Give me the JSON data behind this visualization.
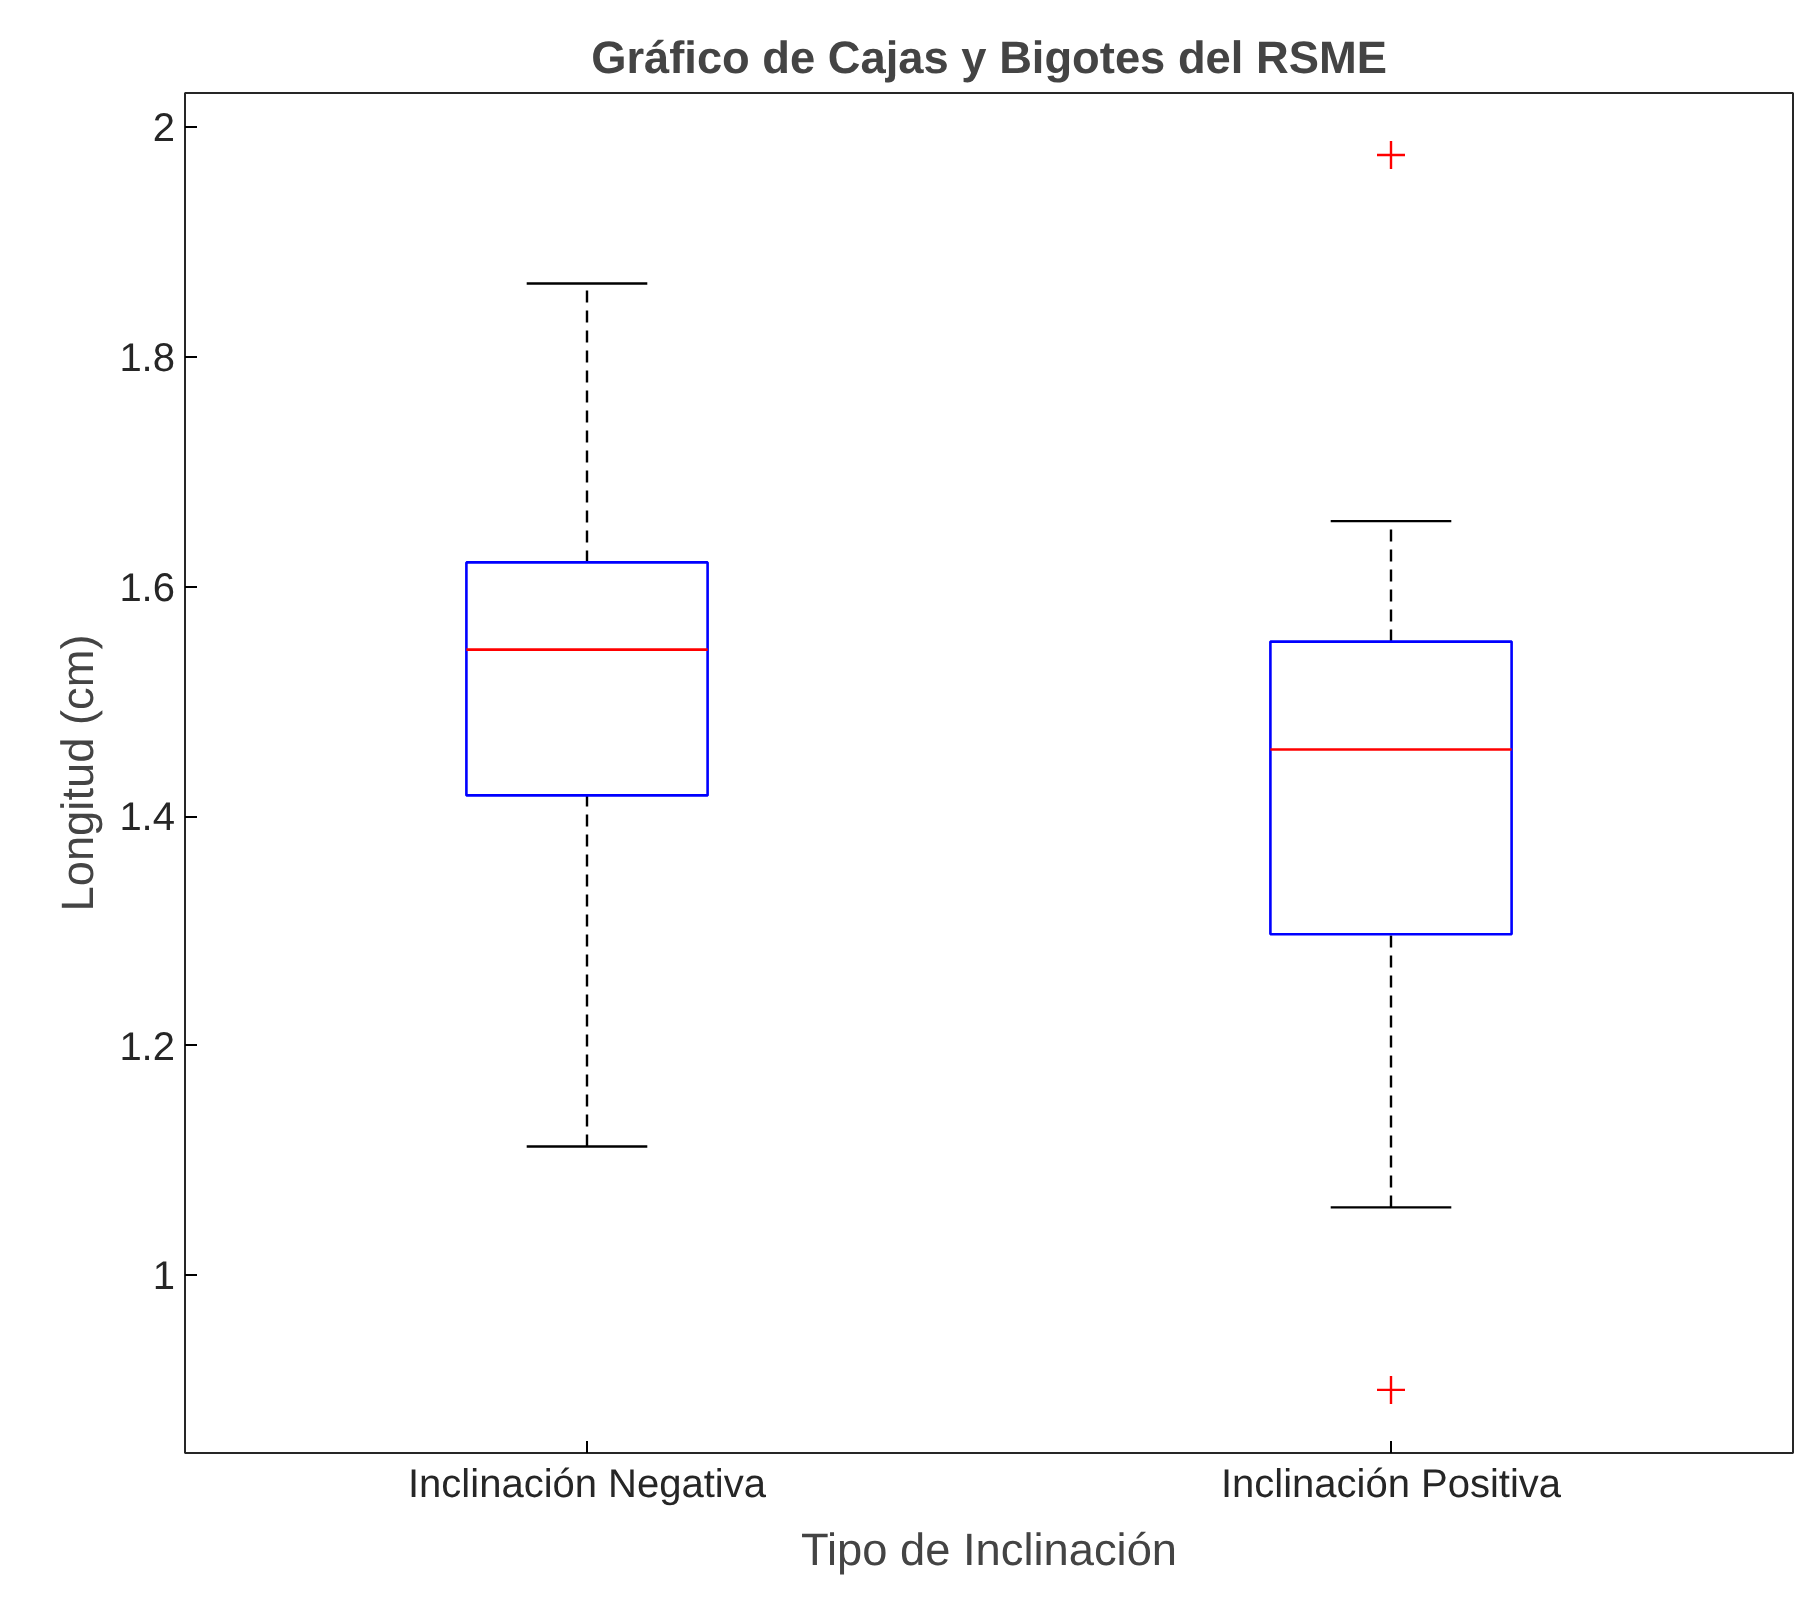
{
  "chart_data": {
    "type": "box",
    "title": "Gráfico de Cajas y Bigotes del RSME",
    "xlabel": "Tipo de Inclinación",
    "ylabel": "Longitud (cm)",
    "categories": [
      "Inclinación Negativa",
      "Inclinación Positiva"
    ],
    "series": [
      {
        "color": "#0000ff",
        "boxes": [
          {
            "low": 1.112,
            "q1": 1.418,
            "median": 1.545,
            "q3": 1.621,
            "high": 1.864
          },
          {
            "low": 1.059,
            "q1": 1.297,
            "median": 1.458,
            "q3": 1.552,
            "high": 1.657,
            "outliers": [
              1.976,
              0.9
            ]
          }
        ]
      }
    ],
    "ylim": [
      0.845,
      2.03
    ],
    "yticks": [
      1,
      1.2,
      1.4,
      1.6,
      1.8,
      2
    ],
    "grid": false
  }
}
